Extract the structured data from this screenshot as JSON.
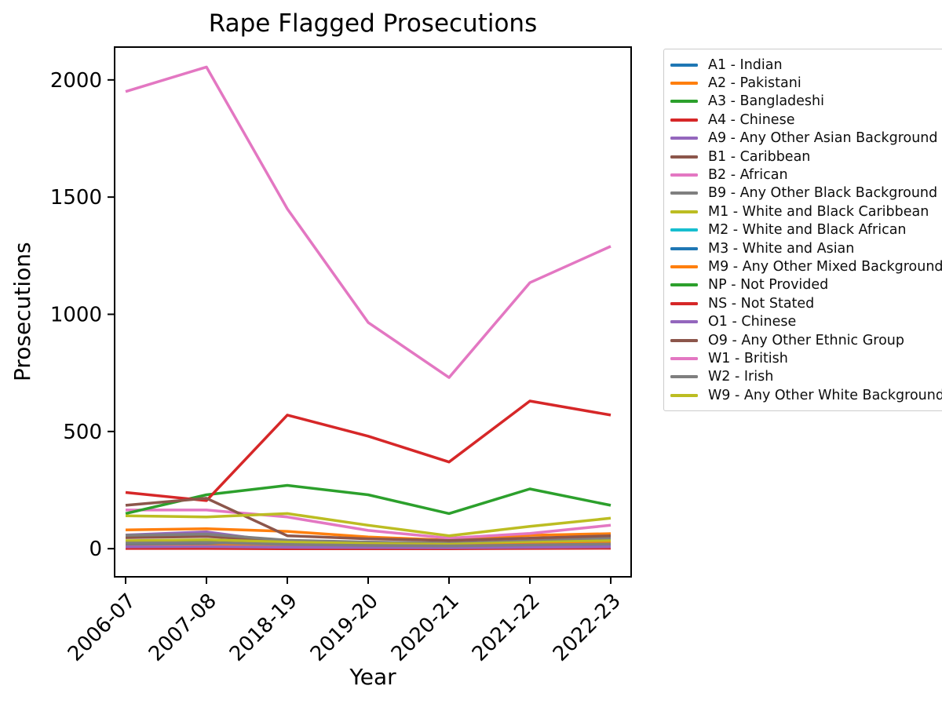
{
  "figure": {
    "title": "Rape Flagged Prosecutions",
    "background_color": "#ffffff",
    "axis_color": "#000000",
    "legend_border_color": "#cccccc"
  },
  "chart_data": {
    "type": "line",
    "title": "Rape Flagged Prosecutions",
    "xlabel": "Year",
    "ylabel": "Prosecutions",
    "categories": [
      "2006-07",
      "2007-08",
      "2018-19",
      "2019-20",
      "2020-21",
      "2021-22",
      "2022-23"
    ],
    "y_ticks": [
      0,
      500,
      1000,
      1500,
      2000
    ],
    "ylim": [
      -120,
      2140
    ],
    "grid": false,
    "legend_position": "outside-right",
    "x_tick_rotation": 45,
    "series": [
      {
        "name": "A1 - Indian",
        "color": "#1f77b4",
        "values": [
          30,
          34,
          18,
          14,
          12,
          17,
          22
        ]
      },
      {
        "name": "A2 - Pakistani",
        "color": "#ff7f0e",
        "values": [
          80,
          85,
          74,
          50,
          36,
          57,
          64
        ]
      },
      {
        "name": "A3 - Bangladeshi",
        "color": "#2ca02c",
        "values": [
          28,
          30,
          15,
          12,
          10,
          14,
          18
        ]
      },
      {
        "name": "A4 - Chinese",
        "color": "#d62728",
        "values": [
          1,
          1,
          0,
          0,
          0,
          1,
          2
        ]
      },
      {
        "name": "A9 - Any Other Asian Background",
        "color": "#9467bd",
        "values": [
          58,
          72,
          26,
          20,
          17,
          24,
          30
        ]
      },
      {
        "name": "B1 - Caribbean",
        "color": "#8c564b",
        "values": [
          47,
          52,
          32,
          26,
          22,
          30,
          36
        ]
      },
      {
        "name": "B2 - African",
        "color": "#e377c2",
        "values": [
          165,
          165,
          135,
          78,
          45,
          65,
          100
        ]
      },
      {
        "name": "B9 - Any Other Black Background",
        "color": "#7f7f7f",
        "values": [
          57,
          62,
          36,
          28,
          24,
          34,
          45
        ]
      },
      {
        "name": "M1 - White and Black Caribbean",
        "color": "#bcbd22",
        "values": [
          34,
          38,
          28,
          22,
          19,
          27,
          34
        ]
      },
      {
        "name": "M2 - White and Black African",
        "color": "#17becf",
        "values": [
          18,
          20,
          12,
          9,
          8,
          12,
          16
        ]
      },
      {
        "name": "M3 - White and Asian",
        "color": "#1f77b4",
        "values": [
          21,
          23,
          14,
          10,
          9,
          13,
          17
        ]
      },
      {
        "name": "M9 - Any Other Mixed Background",
        "color": "#ff7f0e",
        "values": [
          10,
          12,
          17,
          14,
          12,
          19,
          24
        ]
      },
      {
        "name": "NP - Not Provided",
        "color": "#2ca02c",
        "values": [
          150,
          230,
          270,
          230,
          150,
          255,
          185
        ]
      },
      {
        "name": "NS - Not Stated",
        "color": "#d62728",
        "values": [
          240,
          205,
          570,
          480,
          370,
          630,
          570
        ]
      },
      {
        "name": "O1 - Chinese",
        "color": "#9467bd",
        "values": [
          8,
          9,
          6,
          5,
          4,
          6,
          8
        ]
      },
      {
        "name": "O9 - Any Other Ethnic Group",
        "color": "#8c564b",
        "values": [
          185,
          215,
          55,
          42,
          35,
          45,
          55
        ]
      },
      {
        "name": "W1 - British",
        "color": "#e377c2",
        "values": [
          1950,
          2055,
          1450,
          965,
          730,
          1135,
          1290
        ]
      },
      {
        "name": "W2 - Irish",
        "color": "#7f7f7f",
        "values": [
          24,
          26,
          18,
          14,
          12,
          16,
          20
        ]
      },
      {
        "name": "W9 - Any Other White Background",
        "color": "#bcbd22",
        "values": [
          140,
          135,
          150,
          100,
          55,
          95,
          130
        ]
      }
    ]
  }
}
